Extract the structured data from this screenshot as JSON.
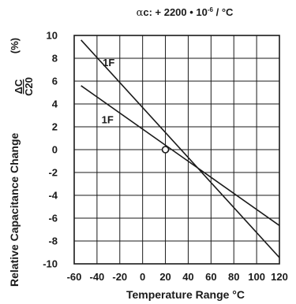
{
  "chart_data": {
    "type": "line",
    "title_greek": "α",
    "title_rest": "c: + 2200 • 10",
    "title_sup": "-6",
    "title_tail": " / °C",
    "xlabel": "Temperature Range °C",
    "ylabel": "Relative Capacitance Change",
    "ylabel_delta": "ΔC",
    "ylabel_base": "C20",
    "ylabel_unit": "(%)",
    "xlim": [
      -60,
      120
    ],
    "ylim": [
      -10,
      10
    ],
    "x_ticks": [
      -60,
      -40,
      -20,
      0,
      20,
      40,
      60,
      80,
      100,
      120
    ],
    "y_ticks": [
      10,
      8,
      6,
      4,
      2,
      0,
      -2,
      -4,
      -6,
      -8,
      -10
    ],
    "grid": true,
    "reference_point": {
      "x": 20,
      "y": 0
    },
    "series": [
      {
        "name": "1F",
        "x": [
          -54,
          125
        ],
        "y": [
          9.6,
          -10.0
        ],
        "label_at": {
          "x": -35,
          "y": 7.3
        }
      },
      {
        "name": "1F",
        "x": [
          -54,
          125
        ],
        "y": [
          5.6,
          -7.0
        ],
        "label_at": {
          "x": -36,
          "y": 2.3
        }
      }
    ]
  }
}
